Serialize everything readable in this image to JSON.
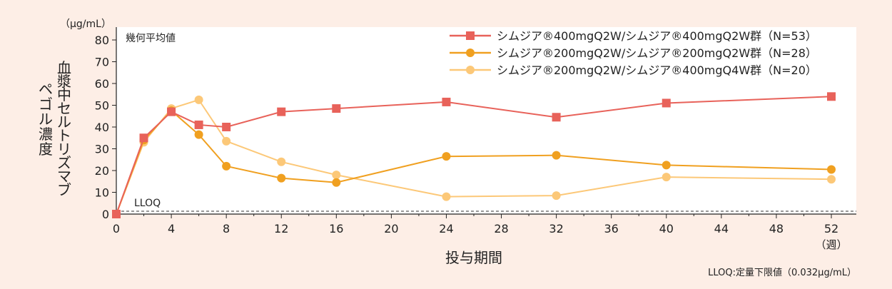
{
  "chart_data": {
    "type": "line",
    "unit_label": "（μg/mL）",
    "ylabel": "血漿中セルトリズマブ ペゴル濃度",
    "ylabel_lines": [
      "血漿中セルトリズマブ",
      "ペゴル濃度"
    ],
    "xlabel": "投与期間",
    "x_unit": "（週）",
    "ylim": [
      0,
      85
    ],
    "xlim": [
      0,
      53
    ],
    "yticks": [
      0,
      10,
      20,
      30,
      40,
      50,
      60,
      70,
      80
    ],
    "xticks": [
      0,
      4,
      8,
      12,
      16,
      20,
      24,
      28,
      32,
      36,
      40,
      44,
      48,
      52
    ],
    "corner_label": "幾何平均値",
    "lloq_label": "LLOQ",
    "lloq_value": 0.032,
    "footnote": "LLOQ:定量下限値（0.032μg/mL）",
    "grid": false,
    "legend_position": "top-right",
    "series": [
      {
        "name": "シムジア®400mgQ2W/シムジア®400mgQ2W群（N=53）",
        "marker": "square",
        "color": "#e8625a",
        "x": [
          0,
          2,
          4,
          6,
          8,
          12,
          16,
          24,
          32,
          40,
          52
        ],
        "y": [
          0,
          35,
          47,
          41,
          40,
          47,
          48.5,
          51.5,
          44.5,
          51,
          54
        ]
      },
      {
        "name": "シムジア®200mgQ2W/シムジア®200mgQ2W群（N=28）",
        "marker": "circle",
        "color": "#f0a020",
        "x": [
          0,
          2,
          4,
          6,
          8,
          12,
          16,
          24,
          32,
          40,
          52
        ],
        "y": [
          0,
          34,
          47.5,
          36.5,
          22,
          16.5,
          14.5,
          26.5,
          27,
          22.5,
          20.5
        ]
      },
      {
        "name": "シムジア®200mgQ2W/シムジア®400mgQ4W群（N=20）",
        "marker": "circle",
        "color": "#fcc878",
        "x": [
          0,
          2,
          4,
          6,
          8,
          12,
          16,
          24,
          32,
          40,
          52
        ],
        "y": [
          0,
          33,
          48.5,
          52.5,
          33.5,
          24,
          18,
          8,
          8.5,
          17,
          16
        ]
      }
    ]
  }
}
